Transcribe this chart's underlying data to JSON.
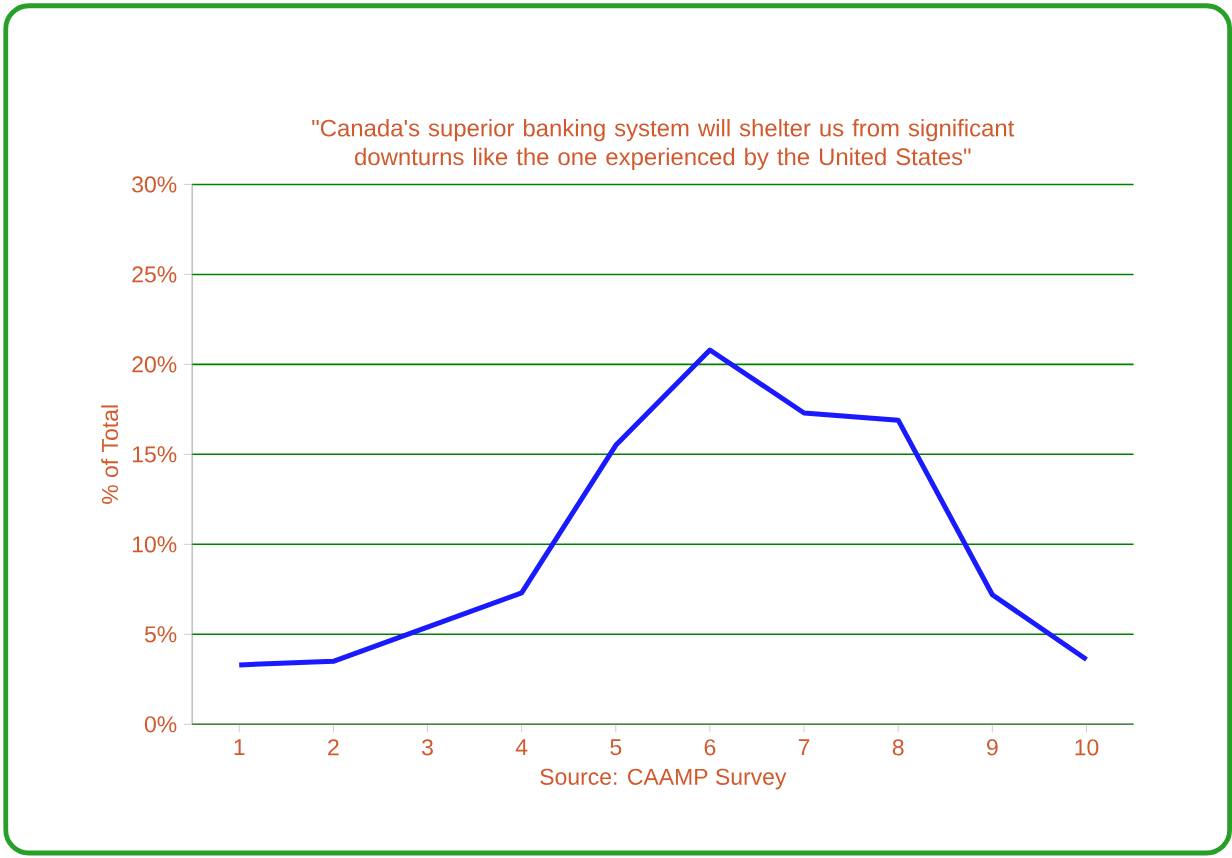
{
  "chart_data": {
    "type": "line",
    "title": "\"Canada's superior banking system will shelter us from significant downturns like the one experienced by the United States\"",
    "xlabel": "Source: CAAMP Survey",
    "ylabel": "% of Total",
    "categories": [
      "1",
      "2",
      "3",
      "4",
      "5",
      "6",
      "7",
      "8",
      "9",
      "10"
    ],
    "series": [
      {
        "color": "#1a1aff",
        "values": [
          3.3,
          3.5,
          5.4,
          7.3,
          15.5,
          20.8,
          17.3,
          16.9,
          7.2,
          3.6
        ]
      }
    ],
    "ylim": [
      0,
      30
    ],
    "yticks": [
      {
        "value": 0,
        "label": "0%"
      },
      {
        "value": 5,
        "label": "5%"
      },
      {
        "value": 10,
        "label": "10%"
      },
      {
        "value": 15,
        "label": "15%"
      },
      {
        "value": 20,
        "label": "20%"
      },
      {
        "value": 25,
        "label": "25%"
      },
      {
        "value": 30,
        "label": "30%"
      }
    ],
    "grid": "y",
    "marker": "none",
    "line_style": "solid"
  }
}
